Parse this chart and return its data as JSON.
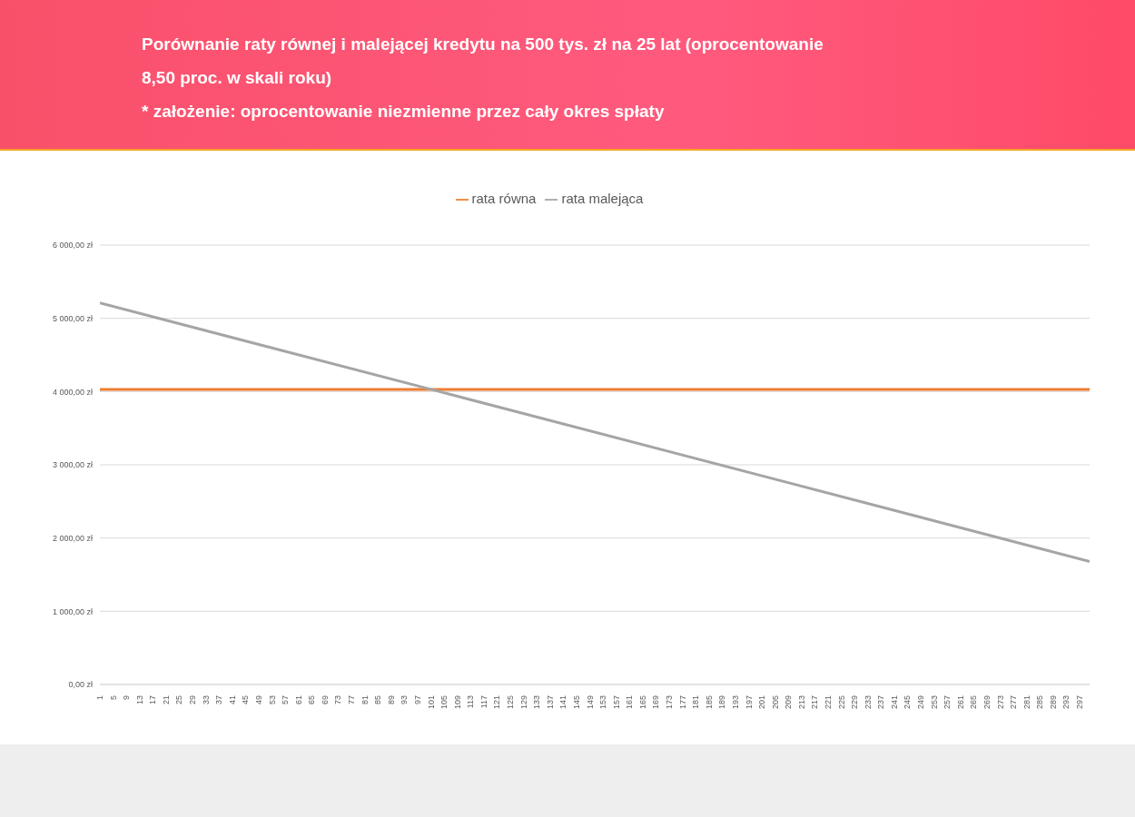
{
  "chart_data": {
    "type": "line",
    "title": "Porównanie raty równej i malejącej kredytu na 500 tys. zł na 25 lat (oprocentowanie 8,50 proc. w skali roku)",
    "subtitle": "* założenie: oprocentowanie niezmienne przez cały okres spłaty",
    "series": [
      {
        "name": "rata równa",
        "color": "#ed7d31",
        "x": [
          1,
          300
        ],
        "values": [
          4030,
          4030
        ]
      },
      {
        "name": "rata malejąca",
        "color": "#a5a5a5",
        "x": [
          1,
          101,
          201,
          300
        ],
        "values": [
          5210,
          4030,
          2850,
          1680
        ]
      }
    ],
    "xlim": [
      1,
      300
    ],
    "xticks": [
      1,
      5,
      9,
      13,
      17,
      21,
      25,
      29,
      33,
      37,
      41,
      45,
      49,
      53,
      57,
      61,
      65,
      69,
      73,
      77,
      81,
      85,
      89,
      93,
      97,
      101,
      105,
      109,
      113,
      117,
      121,
      125,
      129,
      133,
      137,
      141,
      145,
      149,
      153,
      157,
      161,
      165,
      169,
      173,
      177,
      181,
      185,
      189,
      193,
      197,
      201,
      205,
      209,
      213,
      217,
      221,
      225,
      229,
      233,
      237,
      241,
      245,
      249,
      253,
      257,
      261,
      265,
      269,
      273,
      277,
      281,
      285,
      289,
      293,
      297
    ],
    "ylim": [
      0,
      6000
    ],
    "yticks": [
      {
        "value": 0,
        "label": "0,00 zł"
      },
      {
        "value": 1000,
        "label": "1 000,00 zł"
      },
      {
        "value": 2000,
        "label": "2 000,00 zł"
      },
      {
        "value": 3000,
        "label": "3 000,00 zł"
      },
      {
        "value": 4000,
        "label": "4 000,00 zł"
      },
      {
        "value": 5000,
        "label": "5 000,00 zł"
      },
      {
        "value": 6000,
        "label": "6 000,00 zł"
      }
    ],
    "grid": "y",
    "legend": "top",
    "marker": "none",
    "line_style": "solid"
  }
}
